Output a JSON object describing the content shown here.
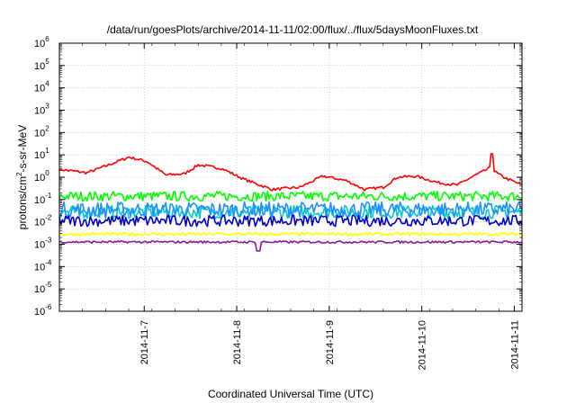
{
  "chart_data": {
    "type": "line",
    "title": "/data/run/goesPlots/archive/2014-11-11/02:00/flux/../flux/5daysMoonFluxes.txt",
    "xlabel": "Coordinated Universal Time (UTC)",
    "ylabel_parts": [
      "protons/cm",
      "2",
      "-s-sr-MeV"
    ],
    "yscale": "log",
    "ylim": [
      1e-06,
      1000000.0
    ],
    "y_ticks": [
      {
        "base": "10",
        "exp": "-6",
        "value": 1e-06
      },
      {
        "base": "10",
        "exp": "-5",
        "value": 1e-05
      },
      {
        "base": "10",
        "exp": "-4",
        "value": 0.0001
      },
      {
        "base": "10",
        "exp": "-3",
        "value": 0.001
      },
      {
        "base": "10",
        "exp": "-2",
        "value": 0.01
      },
      {
        "base": "10",
        "exp": "-1",
        "value": 0.1
      },
      {
        "base": "10",
        "exp": "0",
        "value": 1
      },
      {
        "base": "10",
        "exp": "1",
        "value": 10
      },
      {
        "base": "10",
        "exp": "2",
        "value": 100
      },
      {
        "base": "10",
        "exp": "3",
        "value": 1000
      },
      {
        "base": "10",
        "exp": "4",
        "value": 10000
      },
      {
        "base": "10",
        "exp": "5",
        "value": 100000
      },
      {
        "base": "10",
        "exp": "6",
        "value": 1000000
      }
    ],
    "xlim": [
      "2014-11-06 02:00",
      "2014-11-11 02:00"
    ],
    "x_ticks": [
      "2014-11-7",
      "2014-11-8",
      "2014-11-9",
      "2014-11-10",
      "2014-11-11"
    ],
    "grid": true,
    "series": [
      {
        "color": "#ff0000",
        "center_log": 0.0,
        "envelope": [
          [
            0,
            0.35
          ],
          [
            0.06,
            0.2
          ],
          [
            0.1,
            0.5
          ],
          [
            0.15,
            0.9
          ],
          [
            0.19,
            0.7
          ],
          [
            0.23,
            0.1
          ],
          [
            0.27,
            0.15
          ],
          [
            0.3,
            0.55
          ],
          [
            0.35,
            0.4
          ],
          [
            0.4,
            -0.1
          ],
          [
            0.46,
            -0.55
          ],
          [
            0.52,
            -0.45
          ],
          [
            0.57,
            0.05
          ],
          [
            0.62,
            -0.15
          ],
          [
            0.66,
            -0.55
          ],
          [
            0.7,
            -0.45
          ],
          [
            0.73,
            0.0
          ],
          [
            0.77,
            0.05
          ],
          [
            0.82,
            -0.25
          ],
          [
            0.86,
            -0.35
          ],
          [
            0.9,
            0.1
          ],
          [
            0.93,
            0.4
          ],
          [
            0.96,
            0.0
          ],
          [
            1.0,
            -0.35
          ]
        ],
        "noise": 0.06,
        "spike": {
          "x": 0.935,
          "log": 1.05
        }
      },
      {
        "color": "#00ff00",
        "center_log": -0.85,
        "envelope": [],
        "noise": 0.22
      },
      {
        "color": "#00cccc",
        "center_log": -1.55,
        "envelope": [],
        "noise": 0.3
      },
      {
        "color": "#1e90ff",
        "center_log": -1.45,
        "envelope": [],
        "noise": 0.35
      },
      {
        "color": "#0000cd",
        "center_log": -1.95,
        "envelope": [],
        "noise": 0.25
      },
      {
        "color": "#ffff00",
        "center_log": -2.55,
        "envelope": [],
        "noise": 0.07
      },
      {
        "color": "#8b1a8b",
        "center_log": -2.9,
        "envelope": [],
        "noise": 0.05,
        "spike": {
          "x": 0.43,
          "log": -3.3
        }
      }
    ]
  }
}
